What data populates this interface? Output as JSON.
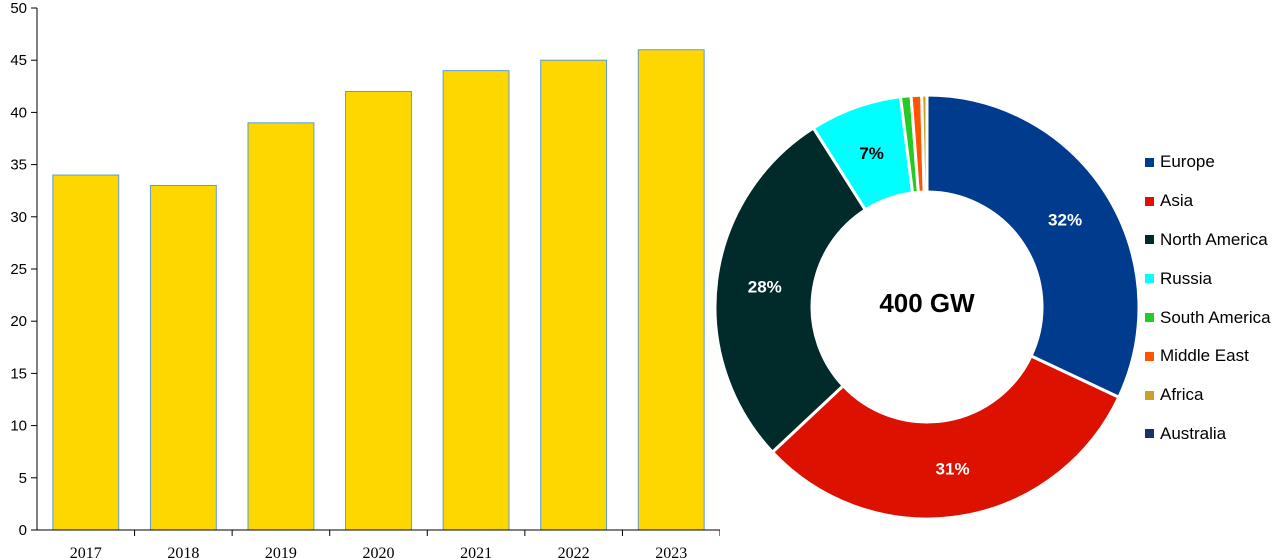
{
  "chart_data": [
    {
      "type": "bar",
      "categories": [
        "2017",
        "2018",
        "2019",
        "2020",
        "2021",
        "2022",
        "2023"
      ],
      "values": [
        34,
        33,
        39,
        42,
        44,
        45,
        46
      ],
      "ylim": [
        0,
        50
      ],
      "yticks": [
        0,
        5,
        10,
        15,
        20,
        25,
        30,
        35,
        40,
        45,
        50
      ],
      "bar_color": "#ffd700",
      "bar_edge_color": "#5b9bd5",
      "grid": false,
      "title": "",
      "xlabel": "",
      "ylabel": ""
    },
    {
      "type": "pie",
      "style": "donut",
      "center_label": "400 GW",
      "slices": [
        {
          "name": "Europe",
          "value": 32,
          "label": "32%",
          "color": "#003b8e",
          "label_color": "#ffffff"
        },
        {
          "name": "Asia",
          "value": 31,
          "label": "31%",
          "color": "#dd1100",
          "label_color": "#ffffff"
        },
        {
          "name": "North America",
          "value": 28,
          "label": "28%",
          "color": "#012a2a",
          "label_color": "#ffffff"
        },
        {
          "name": "Russia",
          "value": 7,
          "label": "7%",
          "color": "#00ffff",
          "label_color": "#000000"
        },
        {
          "name": "South America",
          "value": 0.8,
          "label": "",
          "color": "#22cc22",
          "label_color": "#000000"
        },
        {
          "name": "Middle East",
          "value": 0.8,
          "label": "",
          "color": "#ff5500",
          "label_color": "#000000"
        },
        {
          "name": "Africa",
          "value": 0.4,
          "label": "",
          "color": "#c9a227",
          "label_color": "#000000"
        }
      ],
      "legend": {
        "position": "right",
        "items": [
          {
            "label": "Europe",
            "color": "#003b8e"
          },
          {
            "label": "Asia",
            "color": "#dd1100"
          },
          {
            "label": "North America",
            "color": "#012a2a"
          },
          {
            "label": "Russia",
            "color": "#00ffff"
          },
          {
            "label": "South America",
            "color": "#22cc22"
          },
          {
            "label": "Middle East",
            "color": "#ff5500"
          },
          {
            "label": "Africa",
            "color": "#c9a227"
          },
          {
            "label": "Australia",
            "color": "#1f2f6b"
          }
        ]
      }
    }
  ]
}
